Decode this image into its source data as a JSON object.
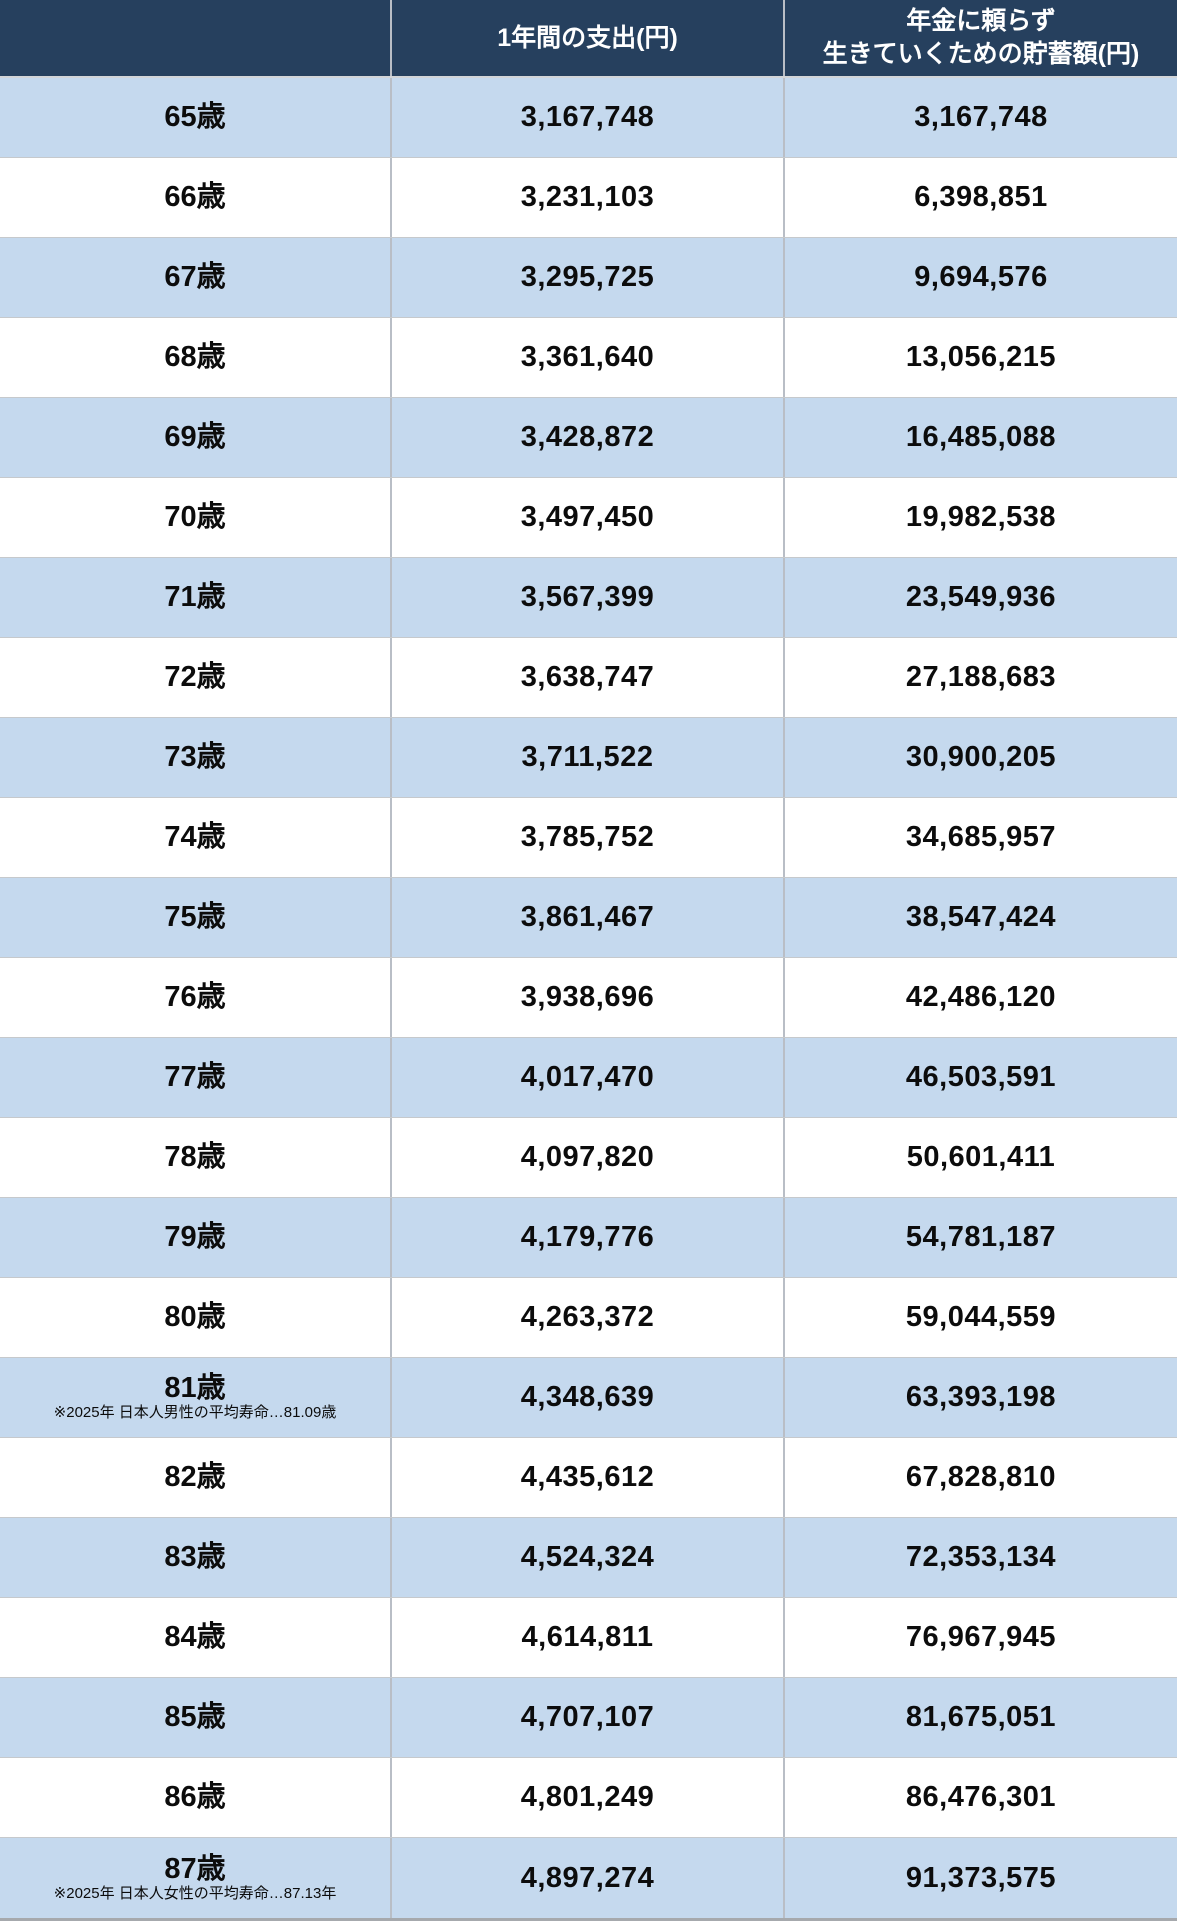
{
  "chart_data": {
    "type": "table",
    "title": "",
    "columns": [
      "",
      "1年間の支出(円)",
      "年金に頼らず生きていくための貯蓄額(円)"
    ],
    "rows": [
      {
        "age": "65歳",
        "note": "",
        "expense": "3,167,748",
        "savings": "3,167,748"
      },
      {
        "age": "66歳",
        "note": "",
        "expense": "3,231,103",
        "savings": "6,398,851"
      },
      {
        "age": "67歳",
        "note": "",
        "expense": "3,295,725",
        "savings": "9,694,576"
      },
      {
        "age": "68歳",
        "note": "",
        "expense": "3,361,640",
        "savings": "13,056,215"
      },
      {
        "age": "69歳",
        "note": "",
        "expense": "3,428,872",
        "savings": "16,485,088"
      },
      {
        "age": "70歳",
        "note": "",
        "expense": "3,497,450",
        "savings": "19,982,538"
      },
      {
        "age": "71歳",
        "note": "",
        "expense": "3,567,399",
        "savings": "23,549,936"
      },
      {
        "age": "72歳",
        "note": "",
        "expense": "3,638,747",
        "savings": "27,188,683"
      },
      {
        "age": "73歳",
        "note": "",
        "expense": "3,711,522",
        "savings": "30,900,205"
      },
      {
        "age": "74歳",
        "note": "",
        "expense": "3,785,752",
        "savings": "34,685,957"
      },
      {
        "age": "75歳",
        "note": "",
        "expense": "3,861,467",
        "savings": "38,547,424"
      },
      {
        "age": "76歳",
        "note": "",
        "expense": "3,938,696",
        "savings": "42,486,120"
      },
      {
        "age": "77歳",
        "note": "",
        "expense": "4,017,470",
        "savings": "46,503,591"
      },
      {
        "age": "78歳",
        "note": "",
        "expense": "4,097,820",
        "savings": "50,601,411"
      },
      {
        "age": "79歳",
        "note": "",
        "expense": "4,179,776",
        "savings": "54,781,187"
      },
      {
        "age": "80歳",
        "note": "",
        "expense": "4,263,372",
        "savings": "59,044,559"
      },
      {
        "age": "81歳",
        "note": "※2025年 日本人男性の平均寿命…81.09歳",
        "expense": "4,348,639",
        "savings": "63,393,198"
      },
      {
        "age": "82歳",
        "note": "",
        "expense": "4,435,612",
        "savings": "67,828,810"
      },
      {
        "age": "83歳",
        "note": "",
        "expense": "4,524,324",
        "savings": "72,353,134"
      },
      {
        "age": "84歳",
        "note": "",
        "expense": "4,614,811",
        "savings": "76,967,945"
      },
      {
        "age": "85歳",
        "note": "",
        "expense": "4,707,107",
        "savings": "81,675,051"
      },
      {
        "age": "86歳",
        "note": "",
        "expense": "4,801,249",
        "savings": "86,476,301"
      },
      {
        "age": "87歳",
        "note": "※2025年 日本人女性の平均寿命…87.13年",
        "expense": "4,897,274",
        "savings": "91,373,575"
      }
    ]
  },
  "header": {
    "age_column": "",
    "expense_column": "1年間の支出(円)",
    "savings_column_line1": "年金に頼らず",
    "savings_column_line2": "生きていくための貯蓄額(円)"
  },
  "colors": {
    "header_bg": "#26405e",
    "header_text": "#ffffff",
    "row_blue_bg": "#c5d9ee",
    "row_white_bg": "#ffffff",
    "grid_line": "#b9bec6",
    "body_text": "#0c0c0c",
    "bottom_bar": "#a6a9ad"
  }
}
